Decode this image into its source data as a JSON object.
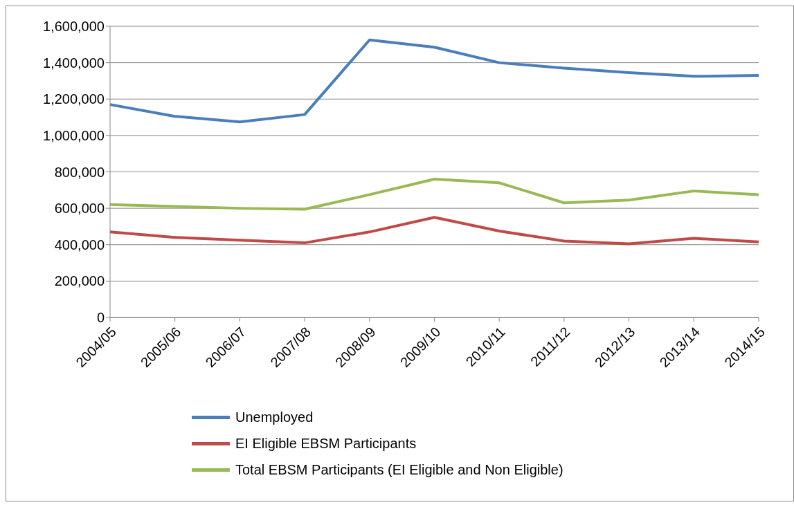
{
  "chart_data": {
    "type": "line",
    "categories": [
      "2004/05",
      "2005/06",
      "2006/07",
      "2007/08",
      "2008/09",
      "2009/10",
      "2010/11",
      "2011/12",
      "2012/13",
      "2013/14",
      "2014/15"
    ],
    "series": [
      {
        "name": "Unemployed",
        "color": "#4a7ebb",
        "values": [
          1170000,
          1105000,
          1075000,
          1115000,
          1525000,
          1485000,
          1400000,
          1370000,
          1345000,
          1325000,
          1330000
        ]
      },
      {
        "name": "EI Eligible EBSM Participants",
        "color": "#be4b48",
        "values": [
          470000,
          440000,
          425000,
          410000,
          470000,
          550000,
          475000,
          420000,
          405000,
          435000,
          415000
        ]
      },
      {
        "name": "Total EBSM Participants (EI Eligible and Non Eligible)",
        "color": "#98b954",
        "values": [
          620000,
          610000,
          600000,
          595000,
          675000,
          760000,
          740000,
          630000,
          645000,
          695000,
          675000
        ]
      }
    ],
    "ylim": [
      0,
      1600000
    ],
    "yticks": [
      0,
      {
        "value": 200000,
        "label": "200,000"
      },
      {
        "value": 400000,
        "label": "400,000"
      },
      {
        "value": 600000,
        "label": "600,000"
      },
      {
        "value": 800000,
        "label": "800,000"
      },
      {
        "value": 1000000,
        "label": "1,000,000"
      },
      {
        "value": 1200000,
        "label": "1,200,000"
      },
      {
        "value": 1400000,
        "label": "1,400,000"
      },
      {
        "value": 1600000,
        "label": "1,600,000"
      }
    ],
    "grid": "y",
    "legend": "bottom",
    "marker": "none",
    "line_style": "solid"
  }
}
